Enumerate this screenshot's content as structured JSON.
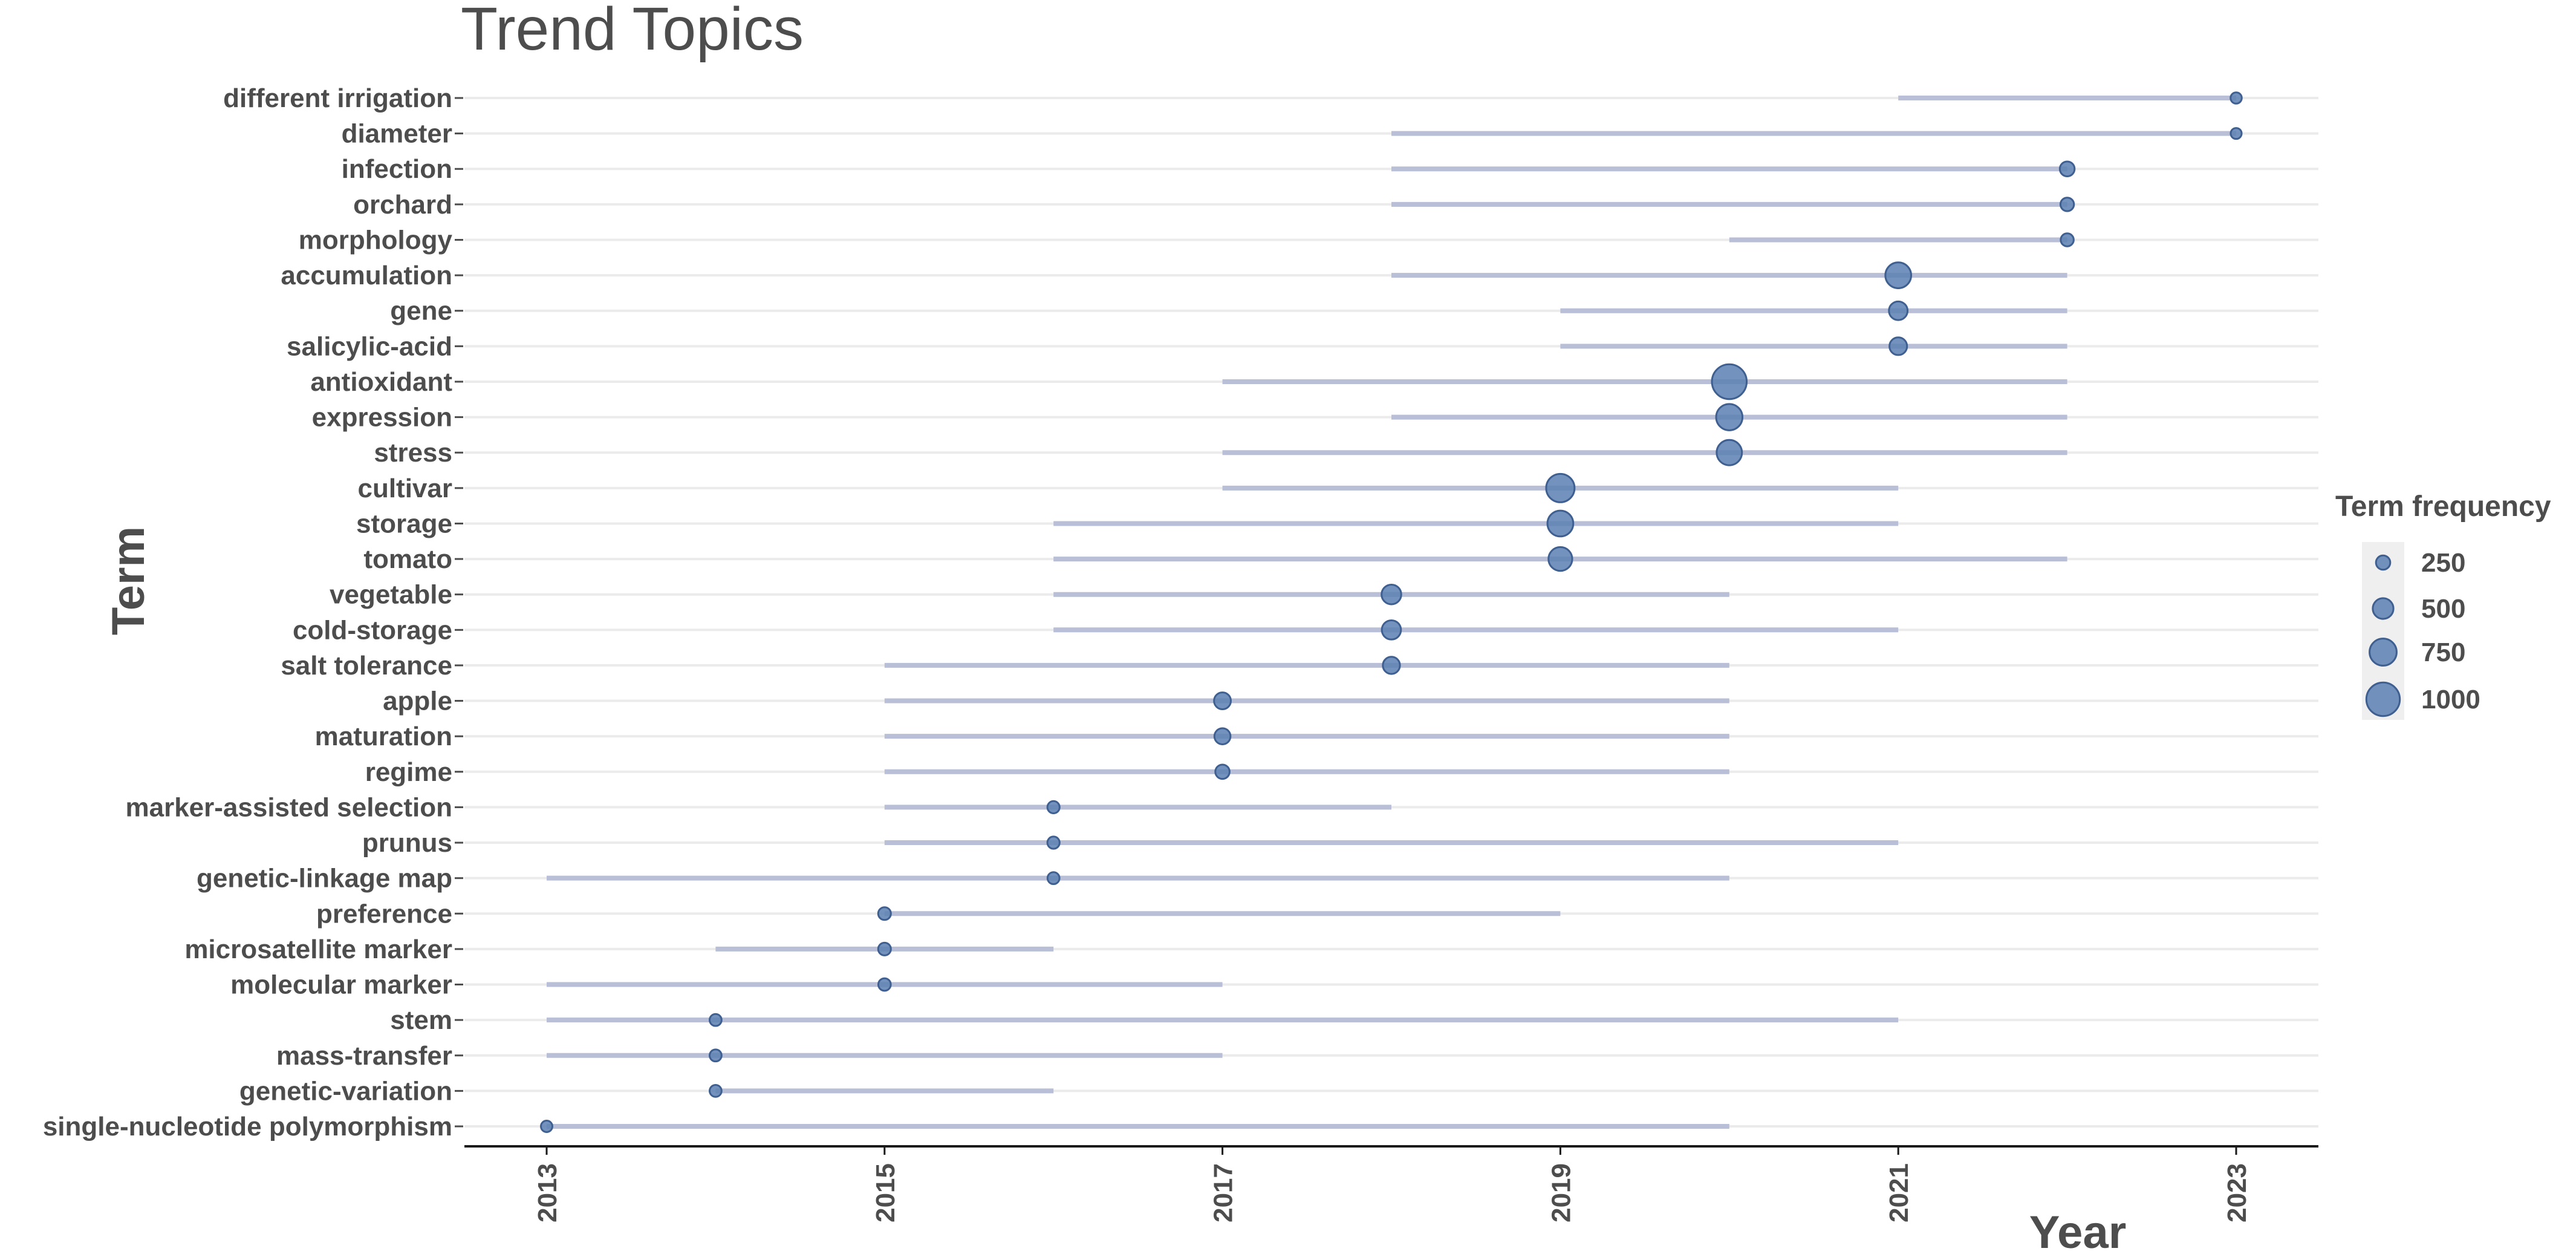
{
  "chart_data": {
    "type": "scatter",
    "title": "Trend Topics",
    "xlabel": "Year",
    "ylabel": "Term",
    "xlim": [
      2012.7,
      2023.5
    ],
    "x_ticks": [
      2013,
      2015,
      2017,
      2019,
      2021,
      2023
    ],
    "grid": "horizontal",
    "legend": {
      "title": "Term frequency",
      "placement": "right",
      "values": [
        250,
        500,
        750,
        1000
      ]
    },
    "colors": {
      "point": "#5b7fb1",
      "point_stroke": "#3e5f8f",
      "range": "#b8bfd6",
      "grid": "#ebebeb",
      "text": "#4d4d4d",
      "legend_bg": "#efefef"
    },
    "terms": [
      {
        "term": "different irrigation",
        "year": 2023,
        "start": 2021,
        "end": 2023,
        "freq": 130
      },
      {
        "term": "diameter",
        "year": 2023,
        "start": 2018,
        "end": 2023,
        "freq": 120
      },
      {
        "term": "infection",
        "year": 2022,
        "start": 2018,
        "end": 2022,
        "freq": 270
      },
      {
        "term": "orchard",
        "year": 2022,
        "start": 2018,
        "end": 2022,
        "freq": 220
      },
      {
        "term": "morphology",
        "year": 2022,
        "start": 2020,
        "end": 2022,
        "freq": 200
      },
      {
        "term": "accumulation",
        "year": 2021,
        "start": 2018,
        "end": 2022,
        "freq": 700
      },
      {
        "term": "gene",
        "year": 2021,
        "start": 2019,
        "end": 2022,
        "freq": 420
      },
      {
        "term": "salicylic-acid",
        "year": 2021,
        "start": 2019,
        "end": 2022,
        "freq": 380
      },
      {
        "term": "antioxidant",
        "year": 2020,
        "start": 2017,
        "end": 2022,
        "freq": 1050
      },
      {
        "term": "expression",
        "year": 2020,
        "start": 2018,
        "end": 2022,
        "freq": 720
      },
      {
        "term": "stress",
        "year": 2020,
        "start": 2017,
        "end": 2022,
        "freq": 680
      },
      {
        "term": "cultivar",
        "year": 2019,
        "start": 2017,
        "end": 2021,
        "freq": 800
      },
      {
        "term": "storage",
        "year": 2019,
        "start": 2016,
        "end": 2021,
        "freq": 700
      },
      {
        "term": "tomato",
        "year": 2019,
        "start": 2016,
        "end": 2022,
        "freq": 620
      },
      {
        "term": "vegetable",
        "year": 2018,
        "start": 2016,
        "end": 2020,
        "freq": 460
      },
      {
        "term": "cold-storage",
        "year": 2018,
        "start": 2016,
        "end": 2021,
        "freq": 440
      },
      {
        "term": "salt tolerance",
        "year": 2018,
        "start": 2015,
        "end": 2020,
        "freq": 360
      },
      {
        "term": "apple",
        "year": 2017,
        "start": 2015,
        "end": 2020,
        "freq": 350
      },
      {
        "term": "maturation",
        "year": 2017,
        "start": 2015,
        "end": 2020,
        "freq": 320
      },
      {
        "term": "regime",
        "year": 2017,
        "start": 2015,
        "end": 2020,
        "freq": 250
      },
      {
        "term": "marker-assisted selection",
        "year": 2016,
        "start": 2015,
        "end": 2018,
        "freq": 170
      },
      {
        "term": "prunus",
        "year": 2016,
        "start": 2015,
        "end": 2021,
        "freq": 170
      },
      {
        "term": "genetic-linkage map",
        "year": 2016,
        "start": 2013,
        "end": 2020,
        "freq": 160
      },
      {
        "term": "preference",
        "year": 2015,
        "start": 2015,
        "end": 2019,
        "freq": 190
      },
      {
        "term": "microsatellite marker",
        "year": 2015,
        "start": 2014,
        "end": 2016,
        "freq": 190
      },
      {
        "term": "molecular marker",
        "year": 2015,
        "start": 2013,
        "end": 2017,
        "freq": 180
      },
      {
        "term": "stem",
        "year": 2014,
        "start": 2013,
        "end": 2021,
        "freq": 160
      },
      {
        "term": "mass-transfer",
        "year": 2014,
        "start": 2013,
        "end": 2017,
        "freq": 160
      },
      {
        "term": "genetic-variation",
        "year": 2014,
        "start": 2014,
        "end": 2016,
        "freq": 160
      },
      {
        "term": "single-nucleotide polymorphism",
        "year": 2013,
        "start": 2013,
        "end": 2020,
        "freq": 140
      }
    ]
  }
}
